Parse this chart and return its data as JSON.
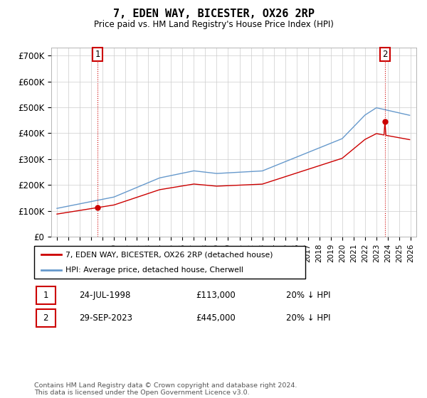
{
  "title": "7, EDEN WAY, BICESTER, OX26 2RP",
  "subtitle": "Price paid vs. HM Land Registry's House Price Index (HPI)",
  "legend_line1": "7, EDEN WAY, BICESTER, OX26 2RP (detached house)",
  "legend_line2": "HPI: Average price, detached house, Cherwell",
  "sale1_date": "24-JUL-1998",
  "sale1_price": "£113,000",
  "sale1_hpi": "20% ↓ HPI",
  "sale2_date": "29-SEP-2023",
  "sale2_price": "£445,000",
  "sale2_hpi": "20% ↓ HPI",
  "footer": "Contains HM Land Registry data © Crown copyright and database right 2024.\nThis data is licensed under the Open Government Licence v3.0.",
  "hpi_color": "#6699cc",
  "price_color": "#cc0000",
  "sale1_year": 1998.56,
  "sale1_value": 113000,
  "sale2_year": 2023.75,
  "sale2_value": 445000,
  "ylim_max": 730000,
  "ylim_min": 0,
  "yticks": [
    0,
    100000,
    200000,
    300000,
    400000,
    500000,
    600000,
    700000
  ],
  "ytick_labels": [
    "£0",
    "£100K",
    "£200K",
    "£300K",
    "£400K",
    "£500K",
    "£600K",
    "£700K"
  ],
  "xmin": 1994.5,
  "xmax": 2026.5,
  "background_color": "#ffffff",
  "plot_bg_color": "#ffffff",
  "grid_color": "#cccccc",
  "annotation_box_color": "#cc0000"
}
